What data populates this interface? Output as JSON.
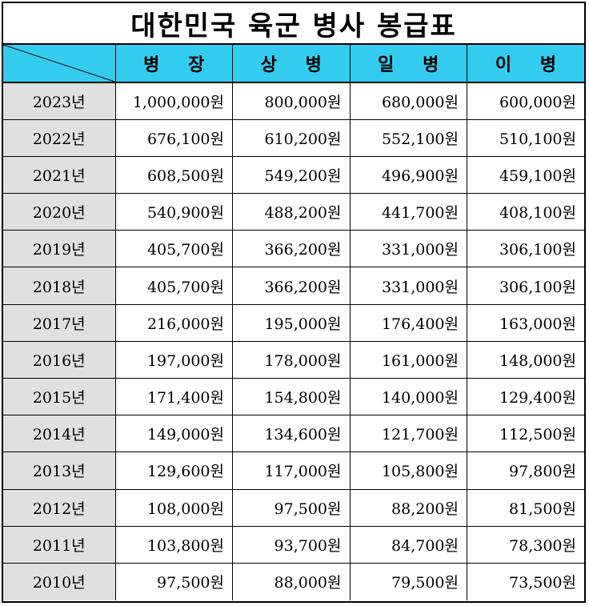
{
  "title": "대한민국 육군 병사 봉급표",
  "header": {
    "columns": [
      "병 장",
      "상 병",
      "일 병",
      "이 병"
    ]
  },
  "colors": {
    "header_bg": "#33ccee",
    "year_bg": "#e0e0e0",
    "border": "#000000"
  },
  "rows": [
    {
      "year": "2023년",
      "values": [
        "1,000,000원",
        "800,000원",
        "680,000원",
        "600,000원"
      ]
    },
    {
      "year": "2022년",
      "values": [
        "676,100원",
        "610,200원",
        "552,100원",
        "510,100원"
      ]
    },
    {
      "year": "2021년",
      "values": [
        "608,500원",
        "549,200원",
        "496,900원",
        "459,100원"
      ]
    },
    {
      "year": "2020년",
      "values": [
        "540,900원",
        "488,200원",
        "441,700원",
        "408,100원"
      ]
    },
    {
      "year": "2019년",
      "values": [
        "405,700원",
        "366,200원",
        "331,000원",
        "306,100원"
      ]
    },
    {
      "year": "2018년",
      "values": [
        "405,700원",
        "366,200원",
        "331,000원",
        "306,100원"
      ]
    },
    {
      "year": "2017년",
      "values": [
        "216,000원",
        "195,000원",
        "176,400원",
        "163,000원"
      ]
    },
    {
      "year": "2016년",
      "values": [
        "197,000원",
        "178,000원",
        "161,000원",
        "148,000원"
      ]
    },
    {
      "year": "2015년",
      "values": [
        "171,400원",
        "154,800원",
        "140,000원",
        "129,400원"
      ]
    },
    {
      "year": "2014년",
      "values": [
        "149,000원",
        "134,600원",
        "121,700원",
        "112,500원"
      ]
    },
    {
      "year": "2013년",
      "values": [
        "129,600원",
        "117,000원",
        "105,800원",
        "97,800원"
      ]
    },
    {
      "year": "2012년",
      "values": [
        "108,000원",
        "97,500원",
        "88,200원",
        "81,500원"
      ]
    },
    {
      "year": "2011년",
      "values": [
        "103,800원",
        "93,700원",
        "84,700원",
        "78,300원"
      ]
    },
    {
      "year": "2010년",
      "values": [
        "97,500원",
        "88,000원",
        "79,500원",
        "73,500원"
      ]
    }
  ]
}
